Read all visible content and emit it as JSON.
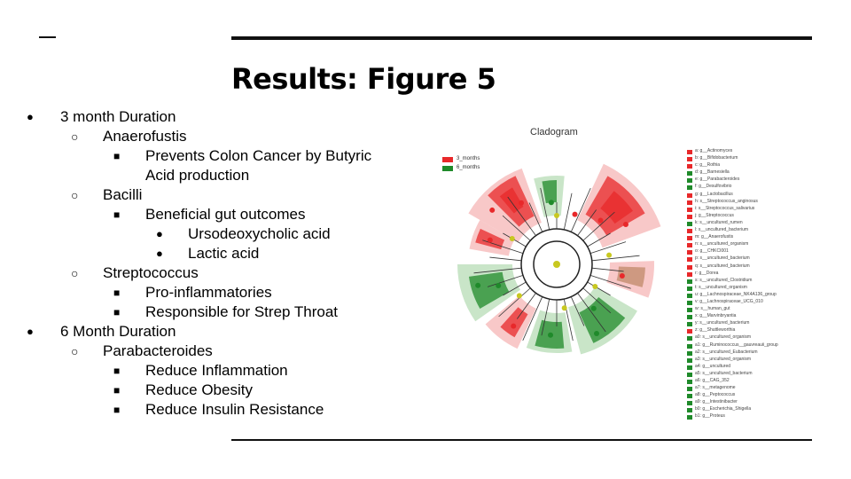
{
  "slide": {
    "title": "Results: Figure 5",
    "bullets": [
      {
        "level": 1,
        "marker": "●",
        "text": "3 month Duration"
      },
      {
        "level": 2,
        "marker": "○",
        "text": "Anaerofustis"
      },
      {
        "level": 3,
        "marker": "■",
        "text": "Prevents Colon Cancer by Butyric"
      },
      {
        "level": 3,
        "marker": "",
        "text": "Acid production"
      },
      {
        "level": 2,
        "marker": "○",
        "text": "Bacilli"
      },
      {
        "level": 3,
        "marker": "■",
        "text": "Beneficial gut outcomes"
      },
      {
        "level": 4,
        "marker": "●",
        "text": "Ursodeoxycholic acid"
      },
      {
        "level": 4,
        "marker": "●",
        "text": "Lactic acid"
      },
      {
        "level": 2,
        "marker": "○",
        "text": "Streptococcus"
      },
      {
        "level": 3,
        "marker": "■",
        "text": "Pro-inflammatories"
      },
      {
        "level": 3,
        "marker": "■",
        "text": "Responsible for Strep Throat"
      },
      {
        "level": 1,
        "marker": "●",
        "text": "6 Month Duration"
      },
      {
        "level": 2,
        "marker": "○",
        "text": "Parabacteroides"
      },
      {
        "level": 3,
        "marker": "■",
        "text": "Reduce Inflammation"
      },
      {
        "level": 3,
        "marker": "■",
        "text": "Reduce Obesity"
      },
      {
        "level": 3,
        "marker": "■",
        "text": "Reduce Insulin Resistance"
      }
    ]
  },
  "figure": {
    "title": "Cladogram",
    "colors": {
      "red": "#e8282a",
      "green": "#1f8a2a",
      "red_light": "#f6b6b6",
      "green_light": "#b7dcb5",
      "node": "#c8c820"
    },
    "groups": [
      {
        "name": "3_months",
        "color": "#e8282a"
      },
      {
        "name": "6_months",
        "color": "#1f8a2a"
      }
    ],
    "legend": [
      {
        "label": "a: g__Actinomyces",
        "color": "#e8282a"
      },
      {
        "label": "b: g__Bifidobacterium",
        "color": "#e8282a"
      },
      {
        "label": "c: g__Rothia",
        "color": "#e8282a"
      },
      {
        "label": "d: g__Barnesiella",
        "color": "#1f8a2a"
      },
      {
        "label": "e: g__Parabacteroides",
        "color": "#1f8a2a"
      },
      {
        "label": "f: g__Desulfovibrio",
        "color": "#1f8a2a"
      },
      {
        "label": "g: g__Lactobacillus",
        "color": "#e8282a"
      },
      {
        "label": "h: s__Streptococcus_anginosus",
        "color": "#e8282a"
      },
      {
        "label": "i: s__Streptococcus_salivarius",
        "color": "#e8282a"
      },
      {
        "label": "j: g__Streptococcus",
        "color": "#e8282a"
      },
      {
        "label": "k: s__uncultured_rumen",
        "color": "#1f8a2a"
      },
      {
        "label": "l: s__uncultured_bacterium",
        "color": "#e8282a"
      },
      {
        "label": "m: g__Anaerofustis",
        "color": "#e8282a"
      },
      {
        "label": "n: s__uncultured_organism",
        "color": "#e8282a"
      },
      {
        "label": "o: g__CHKCI001",
        "color": "#e8282a"
      },
      {
        "label": "p: s__uncultured_bacterium",
        "color": "#e8282a"
      },
      {
        "label": "q: s__uncultured_bacterium",
        "color": "#e8282a"
      },
      {
        "label": "r: g__Dorea",
        "color": "#e8282a"
      },
      {
        "label": "s: s__uncultured_Clostridium",
        "color": "#1f8a2a"
      },
      {
        "label": "t: s__uncultured_organism",
        "color": "#1f8a2a"
      },
      {
        "label": "u: g__Lachnospiraceae_NK4A136_group",
        "color": "#1f8a2a"
      },
      {
        "label": "v: g__Lachnospiraceae_UCG_010",
        "color": "#1f8a2a"
      },
      {
        "label": "w: s__human_gut",
        "color": "#1f8a2a"
      },
      {
        "label": "x: g__Marvinbryantia",
        "color": "#1f8a2a"
      },
      {
        "label": "y: s__uncultured_bacterium",
        "color": "#1f8a2a"
      },
      {
        "label": "z: g__Shuttleworthia",
        "color": "#e8282a"
      },
      {
        "label": "a0: s__uncultured_organism",
        "color": "#1f8a2a"
      },
      {
        "label": "a1: g__Ruminococcus__gauvreauii_group",
        "color": "#1f8a2a"
      },
      {
        "label": "a2: s__uncultured_Eubacterium",
        "color": "#1f8a2a"
      },
      {
        "label": "a3: s__uncultured_organism",
        "color": "#1f8a2a"
      },
      {
        "label": "a4: g__uncultured",
        "color": "#1f8a2a"
      },
      {
        "label": "a5: s__uncultured_bacterium",
        "color": "#1f8a2a"
      },
      {
        "label": "a6: g__CAG_352",
        "color": "#1f8a2a"
      },
      {
        "label": "a7: s__metagenome",
        "color": "#1f8a2a"
      },
      {
        "label": "a8: g__Peptococcus",
        "color": "#1f8a2a"
      },
      {
        "label": "a9: g__Intestinibacter",
        "color": "#1f8a2a"
      },
      {
        "label": "b0: g__Escherichia_Shigella",
        "color": "#1f8a2a"
      },
      {
        "label": "b1: g__Proteus",
        "color": "#1f8a2a"
      }
    ]
  }
}
